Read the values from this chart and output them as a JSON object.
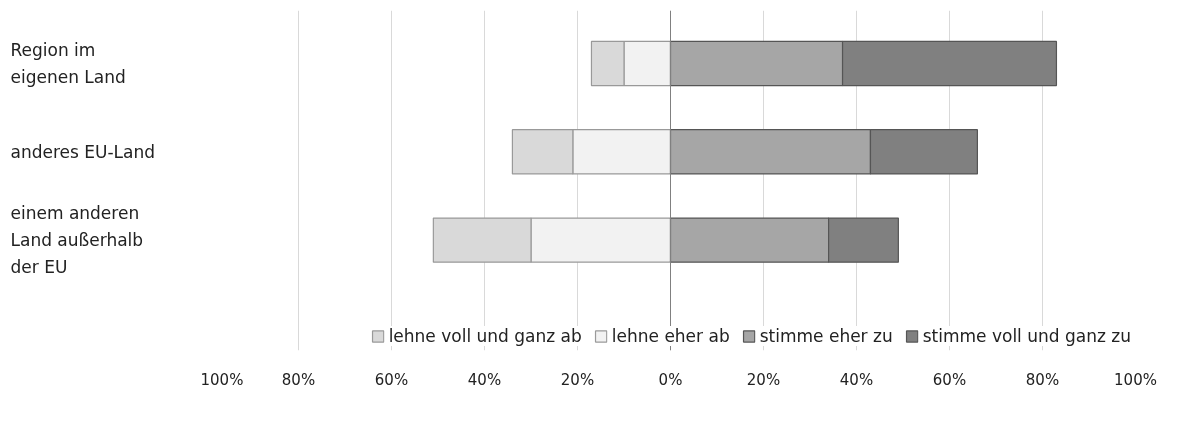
{
  "chart_data": {
    "type": "bar",
    "orientation": "horizontal",
    "stacked": true,
    "categories": [
      "Region im eigenen Land",
      "anderes EU-Land",
      "einem anderen Land außerhalb der EU"
    ],
    "series": [
      {
        "name": "lehne eher ab",
        "color": "#f2f2f2",
        "values": [
          -10,
          -21,
          -30
        ]
      },
      {
        "name": "lehne voll und ganz ab",
        "color": "#d9d9d9",
        "values": [
          -7,
          -13,
          -21
        ]
      },
      {
        "name": "stimme eher zu",
        "color": "#a6a6a6",
        "values": [
          37,
          43,
          34
        ]
      },
      {
        "name": "stimme voll und ganz zu",
        "color": "#808080",
        "values": [
          46,
          23,
          15
        ]
      }
    ],
    "xlim": [
      -100,
      100
    ],
    "xticks": [
      {
        "value": -100,
        "label": "100%"
      },
      {
        "value": -80,
        "label": "80%"
      },
      {
        "value": -60,
        "label": "60%"
      },
      {
        "value": -40,
        "label": "40%"
      },
      {
        "value": -20,
        "label": "20%"
      },
      {
        "value": 0,
        "label": "0%"
      },
      {
        "value": 20,
        "label": "20%"
      },
      {
        "value": 40,
        "label": "40%"
      },
      {
        "value": 60,
        "label": "60%"
      },
      {
        "value": 80,
        "label": "80%"
      },
      {
        "value": 100,
        "label": "100%"
      }
    ],
    "grid": "x",
    "legend": "bottom"
  }
}
